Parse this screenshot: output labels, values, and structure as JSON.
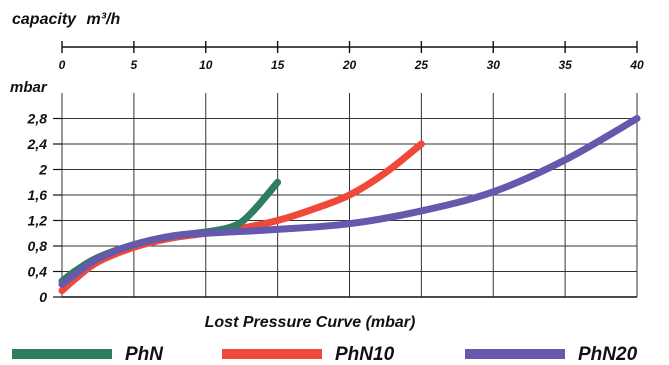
{
  "chart_data": {
    "type": "line",
    "title": "Lost Pressure Curve (mbar)",
    "x_axis": {
      "label_prefix": "capacity",
      "label_unit": "m³/h",
      "range": [
        0,
        40
      ],
      "ticks": [
        "0",
        "5",
        "10",
        "15",
        "20",
        "25",
        "30",
        "35",
        "40"
      ],
      "tick_values": [
        0,
        5,
        10,
        15,
        20,
        25,
        30,
        35,
        40
      ]
    },
    "y_axis": {
      "label": "mbar",
      "range": [
        0,
        3.2
      ],
      "ticks": [
        "0",
        "0,4",
        "0,8",
        "1,2",
        "1,6",
        "2",
        "2,4",
        "2,8"
      ],
      "tick_values": [
        0,
        0.4,
        0.8,
        1.2,
        1.6,
        2.0,
        2.4,
        2.8
      ]
    },
    "grid": true,
    "legend_position": "bottom",
    "series": [
      {
        "name": "PhN",
        "color": "#2e7d5e",
        "points": [
          [
            0,
            0.25
          ],
          [
            1,
            0.42
          ],
          [
            2.5,
            0.62
          ],
          [
            5,
            0.82
          ],
          [
            7.5,
            0.95
          ],
          [
            10,
            1.02
          ],
          [
            11.5,
            1.08
          ],
          [
            12.5,
            1.18
          ],
          [
            13.5,
            1.4
          ],
          [
            15,
            1.8
          ]
        ]
      },
      {
        "name": "PhN10",
        "color": "#f0493a",
        "points": [
          [
            0,
            0.1
          ],
          [
            1,
            0.3
          ],
          [
            2.5,
            0.55
          ],
          [
            5,
            0.78
          ],
          [
            7.5,
            0.92
          ],
          [
            10,
            1.0
          ],
          [
            12.5,
            1.08
          ],
          [
            15,
            1.2
          ],
          [
            17.5,
            1.38
          ],
          [
            20,
            1.6
          ],
          [
            22.5,
            1.95
          ],
          [
            25,
            2.4
          ]
        ]
      },
      {
        "name": "PhN20",
        "color": "#6659ad",
        "points": [
          [
            0,
            0.2
          ],
          [
            1,
            0.37
          ],
          [
            2.5,
            0.6
          ],
          [
            5,
            0.82
          ],
          [
            7.5,
            0.95
          ],
          [
            10,
            1.0
          ],
          [
            15,
            1.06
          ],
          [
            20,
            1.15
          ],
          [
            25,
            1.35
          ],
          [
            30,
            1.65
          ],
          [
            35,
            2.15
          ],
          [
            40,
            2.8
          ]
        ]
      }
    ]
  }
}
